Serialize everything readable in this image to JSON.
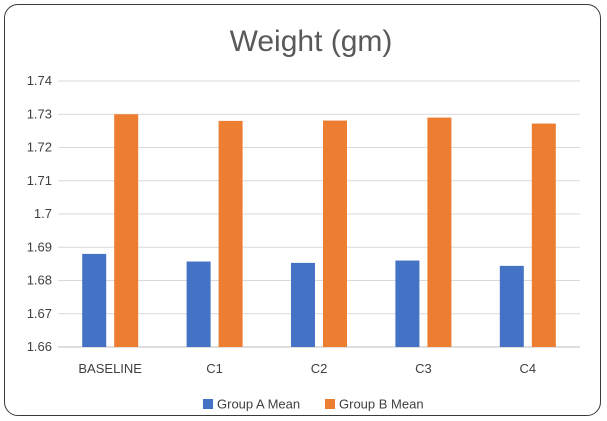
{
  "chart_data": {
    "type": "bar",
    "title": "Weight (gm)",
    "xlabel": "",
    "ylabel": "",
    "categories": [
      "BASELINE",
      "C1",
      "C2",
      "C3",
      "C4"
    ],
    "ylim": [
      1.66,
      1.74
    ],
    "yticks": [
      "1.66",
      "1.67",
      "1.68",
      "1.69",
      "1.7",
      "1.71",
      "1.72",
      "1.73",
      "1.74"
    ],
    "grid": true,
    "legend_position": "bottom",
    "series": [
      {
        "name": "Group A Mean",
        "color": "#4472c4",
        "values": [
          1.688,
          1.6857,
          1.6853,
          1.686,
          1.6844
        ]
      },
      {
        "name": "Group B Mean",
        "color": "#ed7d31",
        "values": [
          1.73,
          1.728,
          1.7281,
          1.729,
          1.7272
        ]
      }
    ]
  }
}
